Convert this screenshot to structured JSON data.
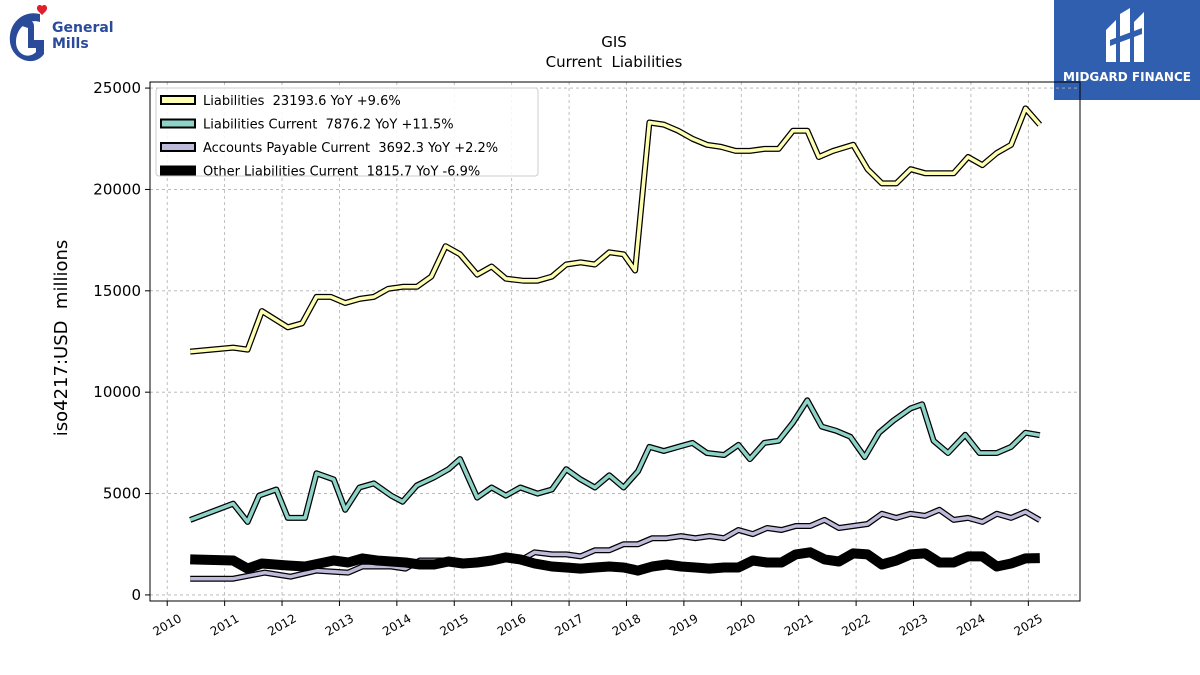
{
  "brand": {
    "logo_text_1": "General",
    "logo_text_2": "Mills",
    "badge_text": "MIDGARD FINANCE"
  },
  "chart_data": {
    "type": "line",
    "title": "GIS",
    "subtitle": "Current  Liabilities",
    "ylabel": "iso4217:USD  millions",
    "xlabel": "",
    "ylim": [
      -300,
      25300
    ],
    "xlim": [
      2009.7,
      2025.9
    ],
    "yticks": [
      0,
      5000,
      10000,
      15000,
      20000,
      25000
    ],
    "xticks": [
      2010,
      2011,
      2012,
      2013,
      2014,
      2015,
      2016,
      2017,
      2018,
      2019,
      2020,
      2021,
      2022,
      2023,
      2024,
      2025
    ],
    "grid": true,
    "legend_position": "top-left",
    "series": [
      {
        "name": "Liabilities  23193.6 YoY +9.6%",
        "color": "#ffffb3",
        "points": [
          [
            2010.4,
            12000
          ],
          [
            2011.15,
            12200
          ],
          [
            2011.4,
            12100
          ],
          [
            2011.65,
            14000
          ],
          [
            2012.1,
            13200
          ],
          [
            2012.35,
            13400
          ],
          [
            2012.6,
            14700
          ],
          [
            2012.85,
            14700
          ],
          [
            2013.1,
            14400
          ],
          [
            2013.35,
            14600
          ],
          [
            2013.6,
            14700
          ],
          [
            2013.85,
            15100
          ],
          [
            2014.1,
            15200
          ],
          [
            2014.35,
            15200
          ],
          [
            2014.6,
            15700
          ],
          [
            2014.85,
            17200
          ],
          [
            2015.1,
            16800
          ],
          [
            2015.4,
            15800
          ],
          [
            2015.65,
            16200
          ],
          [
            2015.9,
            15600
          ],
          [
            2016.2,
            15500
          ],
          [
            2016.45,
            15500
          ],
          [
            2016.7,
            15700
          ],
          [
            2016.95,
            16300
          ],
          [
            2017.2,
            16400
          ],
          [
            2017.45,
            16300
          ],
          [
            2017.7,
            16900
          ],
          [
            2017.95,
            16800
          ],
          [
            2018.15,
            16000
          ],
          [
            2018.4,
            23300
          ],
          [
            2018.65,
            23200
          ],
          [
            2018.9,
            22900
          ],
          [
            2019.15,
            22500
          ],
          [
            2019.4,
            22200
          ],
          [
            2019.65,
            22100
          ],
          [
            2019.9,
            21900
          ],
          [
            2020.15,
            21900
          ],
          [
            2020.4,
            22000
          ],
          [
            2020.65,
            22000
          ],
          [
            2020.9,
            22900
          ],
          [
            2021.15,
            22900
          ],
          [
            2021.35,
            21600
          ],
          [
            2021.6,
            21900
          ],
          [
            2021.95,
            22200
          ],
          [
            2022.2,
            21000
          ],
          [
            2022.45,
            20300
          ],
          [
            2022.7,
            20300
          ],
          [
            2022.95,
            21000
          ],
          [
            2023.2,
            20800
          ],
          [
            2023.45,
            20800
          ],
          [
            2023.7,
            20800
          ],
          [
            2023.95,
            21600
          ],
          [
            2024.2,
            21200
          ],
          [
            2024.45,
            21800
          ],
          [
            2024.7,
            22200
          ],
          [
            2024.95,
            24000
          ],
          [
            2025.2,
            23193.6
          ]
        ]
      },
      {
        "name": "Liabilities Current  7876.2 YoY +11.5%",
        "color": "#8dd3c7",
        "points": [
          [
            2010.4,
            3700
          ],
          [
            2011.15,
            4500
          ],
          [
            2011.4,
            3600
          ],
          [
            2011.6,
            4900
          ],
          [
            2011.9,
            5200
          ],
          [
            2012.1,
            3800
          ],
          [
            2012.4,
            3800
          ],
          [
            2012.6,
            6000
          ],
          [
            2012.9,
            5700
          ],
          [
            2013.1,
            4200
          ],
          [
            2013.35,
            5300
          ],
          [
            2013.6,
            5500
          ],
          [
            2013.9,
            4900
          ],
          [
            2014.1,
            4600
          ],
          [
            2014.35,
            5400
          ],
          [
            2014.65,
            5800
          ],
          [
            2014.9,
            6200
          ],
          [
            2015.1,
            6700
          ],
          [
            2015.4,
            4800
          ],
          [
            2015.65,
            5300
          ],
          [
            2015.9,
            4900
          ],
          [
            2016.15,
            5300
          ],
          [
            2016.45,
            5000
          ],
          [
            2016.7,
            5200
          ],
          [
            2016.95,
            6200
          ],
          [
            2017.2,
            5700
          ],
          [
            2017.45,
            5300
          ],
          [
            2017.7,
            5900
          ],
          [
            2017.95,
            5300
          ],
          [
            2018.2,
            6100
          ],
          [
            2018.4,
            7300
          ],
          [
            2018.65,
            7100
          ],
          [
            2018.9,
            7300
          ],
          [
            2019.15,
            7500
          ],
          [
            2019.4,
            7000
          ],
          [
            2019.7,
            6900
          ],
          [
            2019.95,
            7400
          ],
          [
            2020.15,
            6700
          ],
          [
            2020.4,
            7500
          ],
          [
            2020.65,
            7600
          ],
          [
            2020.9,
            8500
          ],
          [
            2021.15,
            9600
          ],
          [
            2021.4,
            8300
          ],
          [
            2021.65,
            8100
          ],
          [
            2021.9,
            7800
          ],
          [
            2022.15,
            6800
          ],
          [
            2022.4,
            8000
          ],
          [
            2022.65,
            8600
          ],
          [
            2022.95,
            9200
          ],
          [
            2023.15,
            9400
          ],
          [
            2023.35,
            7600
          ],
          [
            2023.6,
            7000
          ],
          [
            2023.9,
            7900
          ],
          [
            2024.15,
            7000
          ],
          [
            2024.45,
            7000
          ],
          [
            2024.7,
            7300
          ],
          [
            2024.95,
            8000
          ],
          [
            2025.2,
            7876.2
          ]
        ]
      },
      {
        "name": "Accounts Payable Current  3692.3 YoY +2.2%",
        "color": "#bebada",
        "points": [
          [
            2010.4,
            800
          ],
          [
            2011.15,
            800
          ],
          [
            2011.7,
            1100
          ],
          [
            2012.15,
            900
          ],
          [
            2012.6,
            1200
          ],
          [
            2013.15,
            1100
          ],
          [
            2013.4,
            1400
          ],
          [
            2013.9,
            1400
          ],
          [
            2014.15,
            1300
          ],
          [
            2014.4,
            1700
          ],
          [
            2014.9,
            1700
          ],
          [
            2015.15,
            1600
          ],
          [
            2015.4,
            1700
          ],
          [
            2015.9,
            1800
          ],
          [
            2016.15,
            1700
          ],
          [
            2016.4,
            2100
          ],
          [
            2016.7,
            2000
          ],
          [
            2016.95,
            2000
          ],
          [
            2017.2,
            1900
          ],
          [
            2017.45,
            2200
          ],
          [
            2017.7,
            2200
          ],
          [
            2017.95,
            2500
          ],
          [
            2018.2,
            2500
          ],
          [
            2018.45,
            2800
          ],
          [
            2018.7,
            2800
          ],
          [
            2018.95,
            2900
          ],
          [
            2019.2,
            2800
          ],
          [
            2019.45,
            2900
          ],
          [
            2019.7,
            2800
          ],
          [
            2019.95,
            3200
          ],
          [
            2020.2,
            3000
          ],
          [
            2020.45,
            3300
          ],
          [
            2020.7,
            3200
          ],
          [
            2020.95,
            3400
          ],
          [
            2021.2,
            3400
          ],
          [
            2021.45,
            3700
          ],
          [
            2021.7,
            3300
          ],
          [
            2021.95,
            3400
          ],
          [
            2022.2,
            3500
          ],
          [
            2022.45,
            4000
          ],
          [
            2022.7,
            3800
          ],
          [
            2022.95,
            4000
          ],
          [
            2023.2,
            3900
          ],
          [
            2023.45,
            4200
          ],
          [
            2023.7,
            3700
          ],
          [
            2023.95,
            3800
          ],
          [
            2024.2,
            3600
          ],
          [
            2024.45,
            4000
          ],
          [
            2024.7,
            3800
          ],
          [
            2024.95,
            4100
          ],
          [
            2025.2,
            3692.3
          ]
        ]
      },
      {
        "name": "Other Liabilities Current  1815.7 YoY -6.9%",
        "color": "#000000",
        "points": [
          [
            2010.4,
            1750
          ],
          [
            2011.15,
            1700
          ],
          [
            2011.4,
            1300
          ],
          [
            2011.65,
            1550
          ],
          [
            2012.1,
            1450
          ],
          [
            2012.4,
            1400
          ],
          [
            2012.65,
            1550
          ],
          [
            2012.9,
            1700
          ],
          [
            2013.15,
            1600
          ],
          [
            2013.4,
            1800
          ],
          [
            2013.65,
            1700
          ],
          [
            2013.9,
            1650
          ],
          [
            2014.15,
            1600
          ],
          [
            2014.4,
            1500
          ],
          [
            2014.65,
            1500
          ],
          [
            2014.9,
            1650
          ],
          [
            2015.15,
            1550
          ],
          [
            2015.4,
            1600
          ],
          [
            2015.65,
            1700
          ],
          [
            2015.9,
            1850
          ],
          [
            2016.15,
            1750
          ],
          [
            2016.4,
            1550
          ],
          [
            2016.7,
            1400
          ],
          [
            2016.95,
            1350
          ],
          [
            2017.2,
            1300
          ],
          [
            2017.45,
            1350
          ],
          [
            2017.7,
            1400
          ],
          [
            2017.95,
            1350
          ],
          [
            2018.2,
            1200
          ],
          [
            2018.45,
            1400
          ],
          [
            2018.7,
            1500
          ],
          [
            2018.95,
            1400
          ],
          [
            2019.2,
            1350
          ],
          [
            2019.45,
            1300
          ],
          [
            2019.7,
            1350
          ],
          [
            2019.95,
            1350
          ],
          [
            2020.2,
            1700
          ],
          [
            2020.45,
            1600
          ],
          [
            2020.7,
            1600
          ],
          [
            2020.95,
            2000
          ],
          [
            2021.2,
            2100
          ],
          [
            2021.45,
            1750
          ],
          [
            2021.7,
            1650
          ],
          [
            2021.95,
            2050
          ],
          [
            2022.2,
            2000
          ],
          [
            2022.45,
            1500
          ],
          [
            2022.7,
            1700
          ],
          [
            2022.95,
            2000
          ],
          [
            2023.2,
            2050
          ],
          [
            2023.45,
            1600
          ],
          [
            2023.7,
            1600
          ],
          [
            2023.95,
            1900
          ],
          [
            2024.2,
            1900
          ],
          [
            2024.45,
            1400
          ],
          [
            2024.7,
            1550
          ],
          [
            2024.95,
            1800
          ],
          [
            2025.2,
            1815.7
          ]
        ]
      }
    ]
  }
}
